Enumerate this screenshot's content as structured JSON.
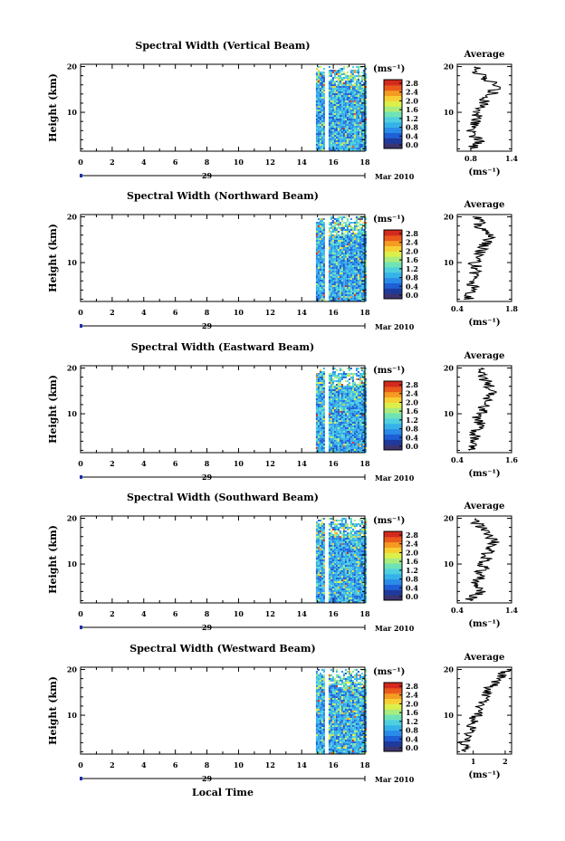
{
  "figure": {
    "xlabel": "Local Time",
    "date_day": "29",
    "date_month_year": "Mar 2010",
    "colorbar_unit": "(ms⁻¹)",
    "avg_title": "Average",
    "avg_xlabel": "(ms⁻¹)",
    "colormap": [
      "#3b3470",
      "#1e3a9c",
      "#1f5fd6",
      "#2a8be8",
      "#36b2ea",
      "#4fd0e0",
      "#6fe3b6",
      "#a9ec7e",
      "#dcef4b",
      "#f6d033",
      "#f59b22",
      "#ea5a1b",
      "#d42a1d"
    ]
  },
  "chart_data": [
    {
      "type": "heatmap",
      "title": "Spectral Width (Vertical Beam)",
      "ylabel": "Height (km)",
      "xlabel": "Local Time",
      "xlim": [
        0,
        18
      ],
      "xticks": [
        "0",
        "2",
        "4",
        "6",
        "8",
        "10",
        "12",
        "14",
        "16",
        "18"
      ],
      "ylim": [
        1.5,
        20.5
      ],
      "yticks": [
        "20",
        "10"
      ],
      "data_x_range": [
        14.9,
        18
      ],
      "data_gap": [
        15.4,
        15.7
      ],
      "colorbar": {
        "range": [
          0.0,
          2.8
        ],
        "ticks": [
          "2.8",
          "2.4",
          "2.0",
          "1.6",
          "1.2",
          "0.8",
          "0.4",
          "0.0"
        ]
      },
      "average_profile": {
        "xlim": [
          0.6,
          1.4
        ],
        "xticks": [
          "0.8",
          "1.4"
        ],
        "ylim": [
          1.5,
          20.5
        ],
        "yticks": [
          "20",
          "10"
        ],
        "heights": [
          2,
          3,
          4,
          5,
          6,
          7,
          8,
          9,
          10,
          11,
          12,
          13,
          14,
          15,
          16,
          17,
          18,
          19,
          20
        ],
        "values": [
          0.82,
          0.85,
          0.95,
          0.82,
          0.8,
          0.83,
          0.85,
          0.9,
          0.88,
          0.92,
          0.98,
          1.02,
          1.12,
          1.15,
          1.2,
          1.05,
          1.0,
          0.85,
          0.95
        ]
      }
    },
    {
      "type": "heatmap",
      "title": "Spectral Width (Northward Beam)",
      "ylabel": "Height (km)",
      "xlabel": "Local Time",
      "xlim": [
        0,
        18
      ],
      "xticks": [
        "0",
        "2",
        "4",
        "6",
        "8",
        "10",
        "12",
        "14",
        "16",
        "18"
      ],
      "ylim": [
        1.5,
        20.5
      ],
      "yticks": [
        "20",
        "10"
      ],
      "data_x_range": [
        14.9,
        18
      ],
      "data_gap": [
        15.4,
        15.7
      ],
      "colorbar": {
        "range": [
          0.0,
          2.8
        ],
        "ticks": [
          "2.8",
          "2.4",
          "2.0",
          "1.6",
          "1.2",
          "0.8",
          "0.4",
          "0.0"
        ]
      },
      "average_profile": {
        "xlim": [
          0.4,
          1.8
        ],
        "xticks": [
          "0.4",
          "1.8"
        ],
        "ylim": [
          1.5,
          20.5
        ],
        "yticks": [
          "20",
          "10"
        ],
        "heights": [
          2,
          3,
          4,
          5,
          6,
          7,
          8,
          9,
          10,
          11,
          12,
          13,
          14,
          15,
          16,
          17,
          18,
          19,
          20
        ],
        "values": [
          0.7,
          0.6,
          0.85,
          0.8,
          0.72,
          0.8,
          0.85,
          0.9,
          0.82,
          0.95,
          0.98,
          1.05,
          1.1,
          1.2,
          1.25,
          1.1,
          0.95,
          1.0,
          0.85
        ]
      }
    },
    {
      "type": "heatmap",
      "title": "Spectral Width (Eastward Beam)",
      "ylabel": "Height (km)",
      "xlabel": "Local Time",
      "xlim": [
        0,
        18
      ],
      "xticks": [
        "0",
        "2",
        "4",
        "6",
        "8",
        "10",
        "12",
        "14",
        "16",
        "18"
      ],
      "ylim": [
        1.5,
        20.5
      ],
      "yticks": [
        "20",
        "10"
      ],
      "data_x_range": [
        14.9,
        18
      ],
      "data_gap": [
        15.4,
        15.7
      ],
      "colorbar": {
        "range": [
          0.0,
          2.8
        ],
        "ticks": [
          "2.8",
          "2.4",
          "2.0",
          "1.6",
          "1.2",
          "0.8",
          "0.4",
          "0.0"
        ]
      },
      "average_profile": {
        "xlim": [
          0.4,
          1.6
        ],
        "xticks": [
          "0.4",
          "1.6"
        ],
        "ylim": [
          1.5,
          20.5
        ],
        "yticks": [
          "20",
          "10"
        ],
        "heights": [
          2,
          3,
          4,
          5,
          6,
          7,
          8,
          9,
          10,
          11,
          12,
          13,
          14,
          15,
          16,
          17,
          18,
          19,
          20
        ],
        "values": [
          0.75,
          0.7,
          0.82,
          0.78,
          0.8,
          0.85,
          0.9,
          0.82,
          0.92,
          0.98,
          1.0,
          1.05,
          1.15,
          1.2,
          1.1,
          1.05,
          0.95,
          1.0,
          0.9
        ]
      }
    },
    {
      "type": "heatmap",
      "title": "Spectral Width (Southward Beam)",
      "ylabel": "Height (km)",
      "xlabel": "Local Time",
      "xlim": [
        0,
        18
      ],
      "xticks": [
        "0",
        "2",
        "4",
        "6",
        "8",
        "10",
        "12",
        "14",
        "16",
        "18"
      ],
      "ylim": [
        1.5,
        20.5
      ],
      "yticks": [
        "20",
        "10"
      ],
      "data_x_range": [
        14.9,
        18
      ],
      "data_gap": [
        15.4,
        15.7
      ],
      "colorbar": {
        "range": [
          0.0,
          2.8
        ],
        "ticks": [
          "2.8",
          "2.4",
          "2.0",
          "1.6",
          "1.2",
          "0.8",
          "0.4",
          "0.0"
        ]
      },
      "average_profile": {
        "xlim": [
          0.4,
          1.4
        ],
        "xticks": [
          "0.4",
          "1.4"
        ],
        "ylim": [
          1.5,
          20.5
        ],
        "yticks": [
          "20",
          "10"
        ],
        "heights": [
          2,
          3,
          4,
          5,
          6,
          7,
          8,
          9,
          10,
          11,
          12,
          13,
          14,
          15,
          16,
          17,
          18,
          19,
          20
        ],
        "values": [
          0.6,
          0.7,
          0.85,
          0.8,
          0.75,
          0.82,
          0.8,
          0.9,
          0.85,
          0.95,
          0.92,
          1.0,
          1.05,
          1.1,
          1.0,
          0.95,
          0.85,
          0.75,
          0.7
        ]
      }
    },
    {
      "type": "heatmap",
      "title": "Spectral Width (Westward Beam)",
      "ylabel": "Height (km)",
      "xlabel": "Local Time",
      "xlim": [
        0,
        18
      ],
      "xticks": [
        "0",
        "2",
        "4",
        "6",
        "8",
        "10",
        "12",
        "14",
        "16",
        "18"
      ],
      "ylim": [
        1.5,
        20.5
      ],
      "yticks": [
        "20",
        "10"
      ],
      "data_x_range": [
        14.9,
        18
      ],
      "data_gap": [
        15.4,
        15.7
      ],
      "colorbar": {
        "range": [
          0.0,
          2.8
        ],
        "ticks": [
          "2.8",
          "2.4",
          "2.0",
          "1.6",
          "1.2",
          "0.8",
          "0.4",
          "0.0"
        ]
      },
      "average_profile": {
        "xlim": [
          0.5,
          2.2
        ],
        "xticks": [
          "1",
          "2"
        ],
        "ylim": [
          1.5,
          20.5
        ],
        "yticks": [
          "20",
          "10"
        ],
        "heights": [
          2,
          3,
          4,
          5,
          6,
          7,
          8,
          9,
          10,
          11,
          12,
          13,
          14,
          15,
          16,
          17,
          18,
          19,
          20
        ],
        "values": [
          0.75,
          0.8,
          0.7,
          0.95,
          0.85,
          0.9,
          1.0,
          0.95,
          1.1,
          1.2,
          1.15,
          1.3,
          1.35,
          1.45,
          1.5,
          1.7,
          1.8,
          1.95,
          2.0
        ]
      }
    }
  ]
}
